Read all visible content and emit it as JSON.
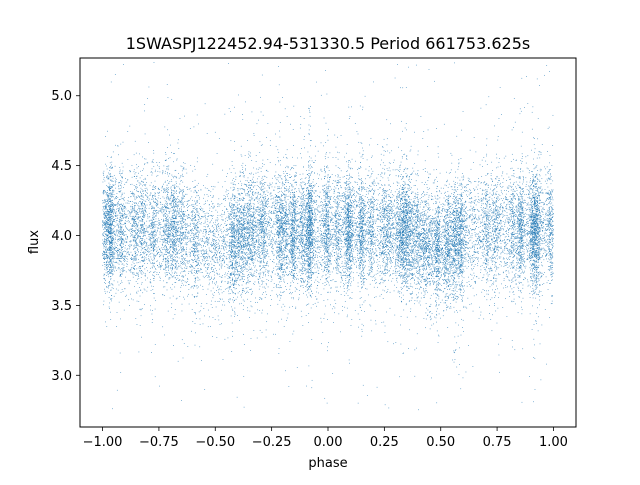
{
  "chart_data": {
    "type": "scatter",
    "title": "1SWASPJ122452.94-531330.5 Period 661753.625s",
    "xlabel": "phase",
    "ylabel": "flux",
    "xlim": [
      -1.1,
      1.1
    ],
    "ylim": [
      2.63,
      5.27
    ],
    "x_ticks": [
      -1.0,
      -0.75,
      -0.5,
      -0.25,
      0.0,
      0.25,
      0.5,
      0.75,
      1.0
    ],
    "x_tick_labels": [
      "−1.00",
      "−0.75",
      "−0.50",
      "−0.25",
      "0.00",
      "0.25",
      "0.50",
      "0.75",
      "1.00"
    ],
    "y_ticks": [
      3.0,
      3.5,
      4.0,
      4.5,
      5.0
    ],
    "y_tick_labels": [
      "3.0",
      "3.5",
      "4.0",
      "4.5",
      "5.0"
    ],
    "grid": false,
    "legend": "none",
    "marker_color": "#1f77b4",
    "series": [
      {
        "phase_range": [
          -1.0,
          1.0
        ],
        "baseline_flux": 4.04,
        "dip_flux": 3.92,
        "dip_phase_ranges": [
          [
            -0.7,
            -0.3
          ],
          [
            0.3,
            0.7
          ]
        ],
        "typical_scatter": 0.2,
        "flux_range": [
          2.75,
          5.25
        ],
        "n_points": 22000
      }
    ]
  }
}
